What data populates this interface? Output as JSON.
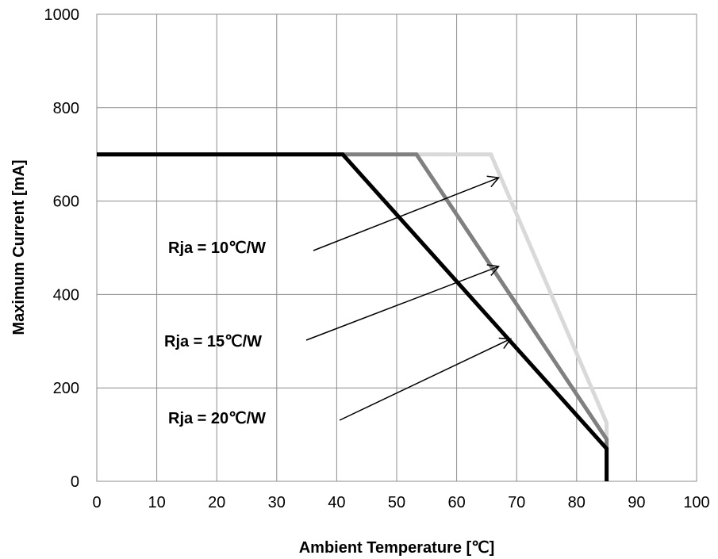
{
  "chart_data": {
    "type": "line",
    "title": "",
    "xlabel": "Ambient Temperature [℃]",
    "ylabel": "Maximum Current [mA]",
    "xlim": [
      0,
      100
    ],
    "ylim": [
      0,
      1000
    ],
    "xticks": [
      0,
      10,
      20,
      30,
      40,
      50,
      60,
      70,
      80,
      90,
      100
    ],
    "yticks": [
      0,
      200,
      400,
      600,
      800,
      1000
    ],
    "grid": true,
    "legend": "none",
    "series": [
      {
        "color": "#d9d9d9",
        "x": [
          0,
          65.7,
          85,
          85
        ],
        "y": [
          700,
          700,
          125,
          0
        ]
      },
      {
        "color": "#808080",
        "x": [
          0,
          53.3,
          85,
          85
        ],
        "y": [
          700,
          700,
          90,
          0
        ]
      },
      {
        "color": "#000000",
        "x": [
          0,
          41,
          85,
          85
        ],
        "y": [
          700,
          700,
          70,
          0
        ]
      }
    ],
    "annotations": [
      {
        "text": "Rja = 10℃/W",
        "target": [
          67,
          650
        ]
      },
      {
        "text": "Rja = 15℃/W",
        "target": [
          67,
          460
        ]
      },
      {
        "text": "Rja = 20℃/W",
        "target": [
          69,
          305
        ]
      }
    ]
  }
}
